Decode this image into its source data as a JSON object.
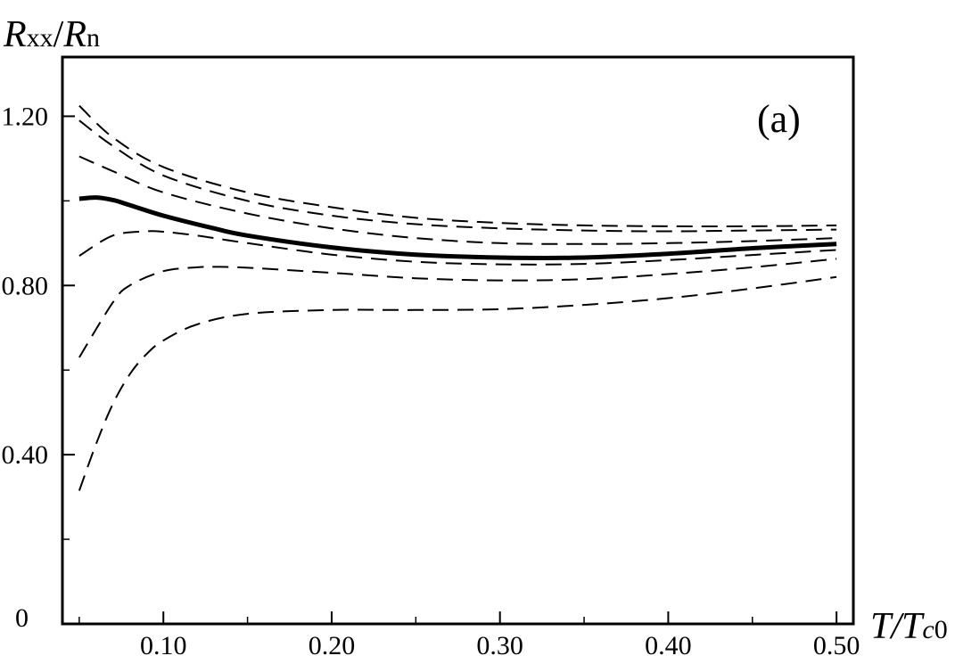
{
  "chart_data": {
    "type": "line",
    "title": "",
    "panel_label": "(a)",
    "xlabel": {
      "main": "T/T",
      "sub_italic": "c",
      "sub": "0"
    },
    "ylabel": {
      "main1": "R",
      "sub1": "xx",
      "slash": "/",
      "main2": "R",
      "sub2": "n"
    },
    "xlim": [
      0.04,
      0.51
    ],
    "ylim": [
      0,
      1.34
    ],
    "x_ticks": [
      0.1,
      0.2,
      0.3,
      0.4,
      0.5
    ],
    "x_tick_labels": [
      "0.10",
      "0.20",
      "0.30",
      "0.40",
      "0.50"
    ],
    "y_ticks": [
      0,
      0.4,
      0.8,
      1.2
    ],
    "y_tick_labels": [
      "0",
      "0.40",
      "0.80",
      "1.20"
    ],
    "y_minor_ticks": [
      0.2,
      0.6,
      1.0
    ],
    "x_minor_ticks": [
      0.05,
      0.15,
      0.25,
      0.35,
      0.45
    ],
    "grid": false,
    "series": [
      {
        "style": "dashed",
        "x": [
          0.05,
          0.07,
          0.1,
          0.15,
          0.2,
          0.25,
          0.3,
          0.35,
          0.4,
          0.45,
          0.5
        ],
        "y": [
          1.225,
          1.15,
          1.08,
          1.02,
          0.985,
          0.96,
          0.948,
          0.942,
          0.94,
          0.94,
          0.942
        ]
      },
      {
        "style": "dashed",
        "x": [
          0.05,
          0.07,
          0.1,
          0.15,
          0.2,
          0.25,
          0.3,
          0.35,
          0.4,
          0.45,
          0.5
        ],
        "y": [
          1.19,
          1.13,
          1.06,
          1.0,
          0.965,
          0.945,
          0.935,
          0.93,
          0.928,
          0.93,
          0.932
        ]
      },
      {
        "style": "dashed",
        "x": [
          0.05,
          0.07,
          0.1,
          0.15,
          0.2,
          0.25,
          0.3,
          0.35,
          0.4,
          0.45,
          0.5
        ],
        "y": [
          1.105,
          1.07,
          1.02,
          0.97,
          0.935,
          0.912,
          0.9,
          0.898,
          0.9,
          0.905,
          0.912
        ]
      },
      {
        "style": "solid",
        "x": [
          0.05,
          0.06,
          0.07,
          0.08,
          0.1,
          0.13,
          0.15,
          0.2,
          0.25,
          0.3,
          0.35,
          0.4,
          0.45,
          0.5
        ],
        "y": [
          1.005,
          1.008,
          1.002,
          0.99,
          0.965,
          0.935,
          0.918,
          0.89,
          0.873,
          0.866,
          0.866,
          0.875,
          0.888,
          0.898
        ]
      },
      {
        "style": "dashed",
        "x": [
          0.05,
          0.07,
          0.09,
          0.1,
          0.12,
          0.15,
          0.2,
          0.25,
          0.3,
          0.35,
          0.4,
          0.45,
          0.5
        ],
        "y": [
          0.87,
          0.918,
          0.928,
          0.927,
          0.918,
          0.9,
          0.873,
          0.856,
          0.85,
          0.851,
          0.86,
          0.872,
          0.884
        ]
      },
      {
        "style": "dashed",
        "x": [
          0.05,
          0.07,
          0.08,
          0.1,
          0.12,
          0.13,
          0.15,
          0.2,
          0.25,
          0.3,
          0.35,
          0.4,
          0.45,
          0.5
        ],
        "y": [
          0.63,
          0.76,
          0.8,
          0.834,
          0.843,
          0.844,
          0.842,
          0.83,
          0.817,
          0.812,
          0.815,
          0.827,
          0.843,
          0.863
        ]
      },
      {
        "style": "dashed",
        "x": [
          0.05,
          0.06,
          0.07,
          0.08,
          0.09,
          0.1,
          0.12,
          0.15,
          0.2,
          0.25,
          0.3,
          0.35,
          0.4,
          0.45,
          0.5
        ],
        "y": [
          0.315,
          0.425,
          0.52,
          0.59,
          0.638,
          0.67,
          0.708,
          0.733,
          0.742,
          0.742,
          0.744,
          0.754,
          0.77,
          0.793,
          0.82
        ]
      }
    ]
  }
}
